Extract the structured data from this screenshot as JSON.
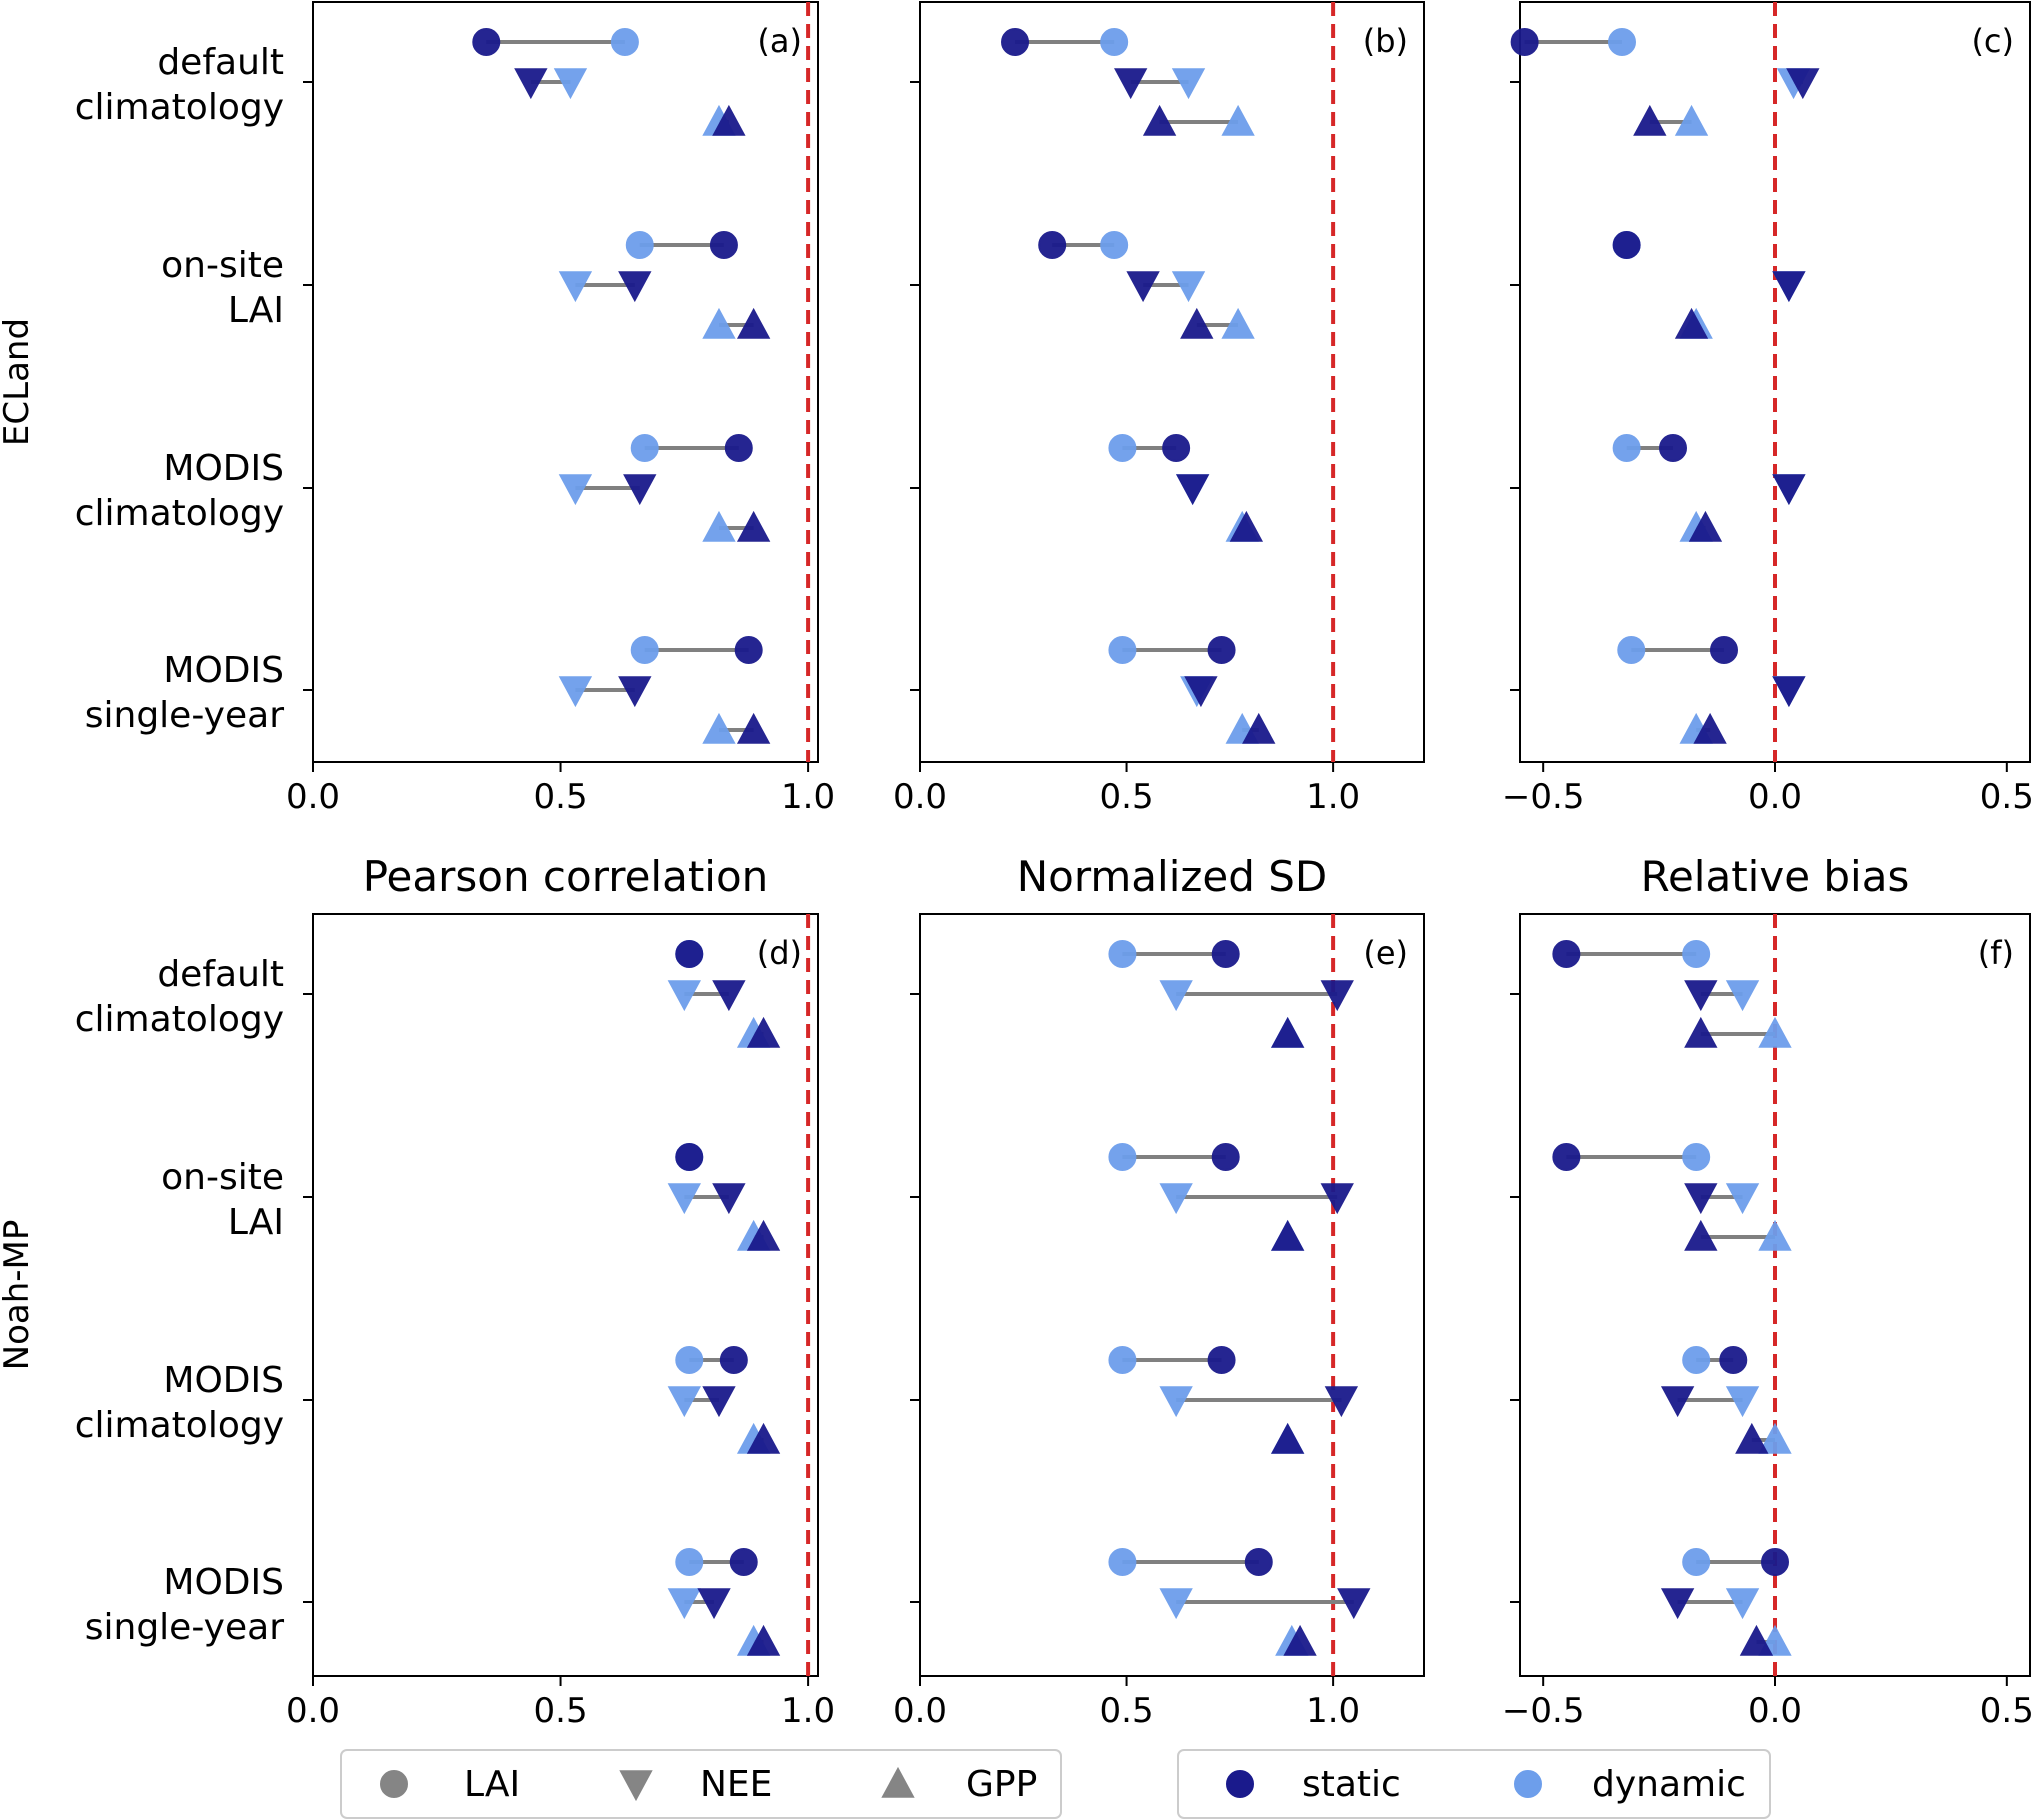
{
  "chart_data": {
    "type": "dumbbell",
    "categories": [
      "default\nclimatology",
      "on-site\nLAI",
      "MODIS\nclimatology",
      "MODIS\nsingle-year"
    ],
    "variables": [
      "LAI",
      "NEE",
      "GPP"
    ],
    "metrics": [
      {
        "key": "pearson",
        "title": "Pearson correlation",
        "xlim": [
          0,
          1.02
        ],
        "ticks": [
          "0.0",
          "0.5",
          "1.0"
        ],
        "tick_values": [
          0,
          0.5,
          1.0
        ],
        "reference": 1.0
      },
      {
        "key": "nsd",
        "title": "Normalized SD",
        "xlim": [
          0,
          1.22
        ],
        "ticks": [
          "0.0",
          "0.5",
          "1.0"
        ],
        "tick_values": [
          0,
          0.5,
          1.0
        ],
        "reference": 1.0
      },
      {
        "key": "bias",
        "title": "Relative bias",
        "xlim": [
          -0.55,
          0.55
        ],
        "ticks": [
          "−0.5",
          "0.0",
          "0.5"
        ],
        "tick_values": [
          -0.5,
          0.0,
          0.5
        ],
        "reference": 0.0
      }
    ],
    "models": [
      {
        "name": "ECLand",
        "panels": [
          {
            "tag": "(a)",
            "metric": "pearson",
            "data": [
              {
                "LAI": [
                  0.35,
                  0.63
                ],
                "NEE": [
                  0.44,
                  0.52
                ],
                "GPP": [
                  0.84,
                  0.82
                ]
              },
              {
                "LAI": [
                  0.83,
                  0.66
                ],
                "NEE": [
                  0.65,
                  0.53
                ],
                "GPP": [
                  0.89,
                  0.82
                ]
              },
              {
                "LAI": [
                  0.86,
                  0.67
                ],
                "NEE": [
                  0.66,
                  0.53
                ],
                "GPP": [
                  0.89,
                  0.82
                ]
              },
              {
                "LAI": [
                  0.88,
                  0.67
                ],
                "NEE": [
                  0.65,
                  0.53
                ],
                "GPP": [
                  0.89,
                  0.82
                ]
              }
            ]
          },
          {
            "tag": "(b)",
            "metric": "nsd",
            "data": [
              {
                "LAI": [
                  0.23,
                  0.47
                ],
                "NEE": [
                  0.51,
                  0.65
                ],
                "GPP": [
                  0.58,
                  0.77
                ]
              },
              {
                "LAI": [
                  0.32,
                  0.47
                ],
                "NEE": [
                  0.54,
                  0.65
                ],
                "GPP": [
                  0.67,
                  0.77
                ]
              },
              {
                "LAI": [
                  0.62,
                  0.49
                ],
                "NEE": [
                  0.66,
                  0.66
                ],
                "GPP": [
                  0.79,
                  0.78
                ]
              },
              {
                "LAI": [
                  0.73,
                  0.49
                ],
                "NEE": [
                  0.68,
                  0.67
                ],
                "GPP": [
                  0.82,
                  0.78
                ]
              }
            ]
          },
          {
            "tag": "(c)",
            "metric": "bias",
            "data": [
              {
                "LAI": [
                  -0.54,
                  -0.33
                ],
                "NEE": [
                  0.06,
                  0.04
                ],
                "GPP": [
                  -0.27,
                  -0.18
                ]
              },
              {
                "LAI": [
                  -0.32,
                  -0.32
                ],
                "NEE": [
                  0.03,
                  0.03
                ],
                "GPP": [
                  -0.18,
                  -0.17
                ]
              },
              {
                "LAI": [
                  -0.22,
                  -0.32
                ],
                "NEE": [
                  0.03,
                  0.03
                ],
                "GPP": [
                  -0.15,
                  -0.17
                ]
              },
              {
                "LAI": [
                  -0.11,
                  -0.31
                ],
                "NEE": [
                  0.03,
                  0.03
                ],
                "GPP": [
                  -0.14,
                  -0.17
                ]
              }
            ]
          }
        ]
      },
      {
        "name": "Noah-MP",
        "panels": [
          {
            "tag": "(d)",
            "metric": "pearson",
            "data": [
              {
                "LAI": [
                  0.76,
                  0.76
                ],
                "NEE": [
                  0.84,
                  0.75
                ],
                "GPP": [
                  0.91,
                  0.89
                ]
              },
              {
                "LAI": [
                  0.76,
                  0.76
                ],
                "NEE": [
                  0.84,
                  0.75
                ],
                "GPP": [
                  0.91,
                  0.89
                ]
              },
              {
                "LAI": [
                  0.85,
                  0.76
                ],
                "NEE": [
                  0.82,
                  0.75
                ],
                "GPP": [
                  0.91,
                  0.89
                ]
              },
              {
                "LAI": [
                  0.87,
                  0.76
                ],
                "NEE": [
                  0.81,
                  0.75
                ],
                "GPP": [
                  0.91,
                  0.89
                ]
              }
            ]
          },
          {
            "tag": "(e)",
            "metric": "nsd",
            "data": [
              {
                "LAI": [
                  0.74,
                  0.49
                ],
                "NEE": [
                  1.01,
                  0.62
                ],
                "GPP": [
                  0.89,
                  0.89
                ]
              },
              {
                "LAI": [
                  0.74,
                  0.49
                ],
                "NEE": [
                  1.01,
                  0.62
                ],
                "GPP": [
                  0.89,
                  0.89
                ]
              },
              {
                "LAI": [
                  0.73,
                  0.49
                ],
                "NEE": [
                  1.02,
                  0.62
                ],
                "GPP": [
                  0.89,
                  0.89
                ]
              },
              {
                "LAI": [
                  0.82,
                  0.49
                ],
                "NEE": [
                  1.05,
                  0.62
                ],
                "GPP": [
                  0.92,
                  0.9
                ]
              }
            ]
          },
          {
            "tag": "(f)",
            "metric": "bias",
            "data": [
              {
                "LAI": [
                  -0.45,
                  -0.17
                ],
                "NEE": [
                  -0.16,
                  -0.07
                ],
                "GPP": [
                  -0.16,
                  0.0
                ]
              },
              {
                "LAI": [
                  -0.45,
                  -0.17
                ],
                "NEE": [
                  -0.16,
                  -0.07
                ],
                "GPP": [
                  -0.16,
                  0.0
                ]
              },
              {
                "LAI": [
                  -0.09,
                  -0.17
                ],
                "NEE": [
                  -0.21,
                  -0.07
                ],
                "GPP": [
                  -0.05,
                  0.0
                ]
              },
              {
                "LAI": [
                  0.0,
                  -0.17
                ],
                "NEE": [
                  -0.21,
                  -0.07
                ],
                "GPP": [
                  -0.04,
                  0.0
                ]
              }
            ]
          }
        ]
      }
    ]
  },
  "legend": {
    "shapes": [
      {
        "label": "LAI",
        "icon": "circle-icon"
      },
      {
        "label": "NEE",
        "icon": "down-triangle-icon"
      },
      {
        "label": "GPP",
        "icon": "up-triangle-icon"
      }
    ],
    "colors": [
      {
        "label": "static",
        "color": "#1a1a8c"
      },
      {
        "label": "dynamic",
        "color": "#6d9eeb"
      }
    ]
  },
  "colors": {
    "static": "#1a1a8c",
    "dynamic": "#6d9eeb",
    "connector": "#808080",
    "reference": "#d62728",
    "shape_gray": "#7f7f7f"
  }
}
